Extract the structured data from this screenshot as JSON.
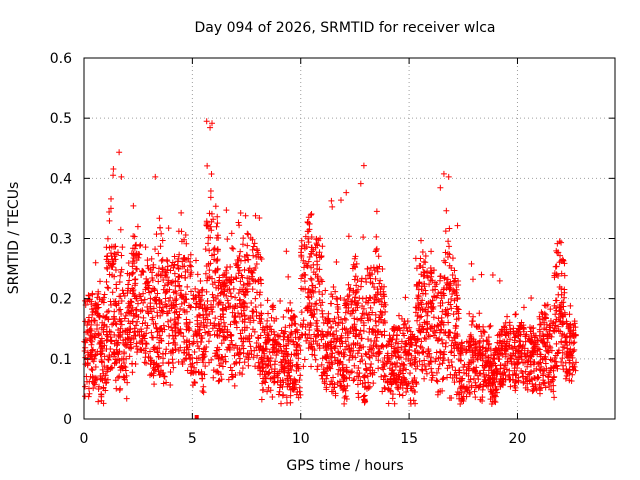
{
  "chart_data": {
    "type": "scatter",
    "title": "Day 094 of 2026, SRMTID for receiver wlca",
    "xlabel": "GPS time / hours",
    "ylabel": "SRMTID / TECUs",
    "xlim": [
      0,
      24.5
    ],
    "ylim": [
      0,
      0.6
    ],
    "x_ticks": [
      0,
      5,
      10,
      15,
      20
    ],
    "y_ticks": [
      0,
      0.1,
      0.2,
      0.3,
      0.4,
      0.5,
      0.6
    ],
    "x_tick_labels": [
      "0",
      "5",
      "10",
      "15",
      "20"
    ],
    "y_tick_labels": [
      "0",
      "0.1",
      "0.2",
      "0.3",
      "0.4",
      "0.5",
      "0.6"
    ],
    "grid": true,
    "marker": "+",
    "series": [
      {
        "name": "SRMTID",
        "color": "#ff0000",
        "segments": [
          {
            "t0": 0.0,
            "t1": 1.0,
            "base": 0.11,
            "spread": 0.09,
            "peak": 0.33,
            "n": 170
          },
          {
            "t0": 1.0,
            "t1": 1.5,
            "base": 0.16,
            "spread": 0.12,
            "peak": 0.52,
            "n": 110
          },
          {
            "t0": 1.5,
            "t1": 2.0,
            "base": 0.1,
            "spread": 0.07,
            "peak": 0.48,
            "n": 80
          },
          {
            "t0": 2.0,
            "t1": 3.0,
            "base": 0.17,
            "spread": 0.1,
            "peak": 0.41,
            "n": 170
          },
          {
            "t0": 3.0,
            "t1": 4.0,
            "base": 0.15,
            "spread": 0.1,
            "peak": 0.42,
            "n": 170
          },
          {
            "t0": 4.0,
            "t1": 5.0,
            "base": 0.17,
            "spread": 0.1,
            "peak": 0.43,
            "n": 170
          },
          {
            "t0": 5.0,
            "t1": 5.6,
            "base": 0.12,
            "spread": 0.08,
            "peak": 0.3,
            "n": 100
          },
          {
            "t0": 5.6,
            "t1": 6.2,
            "base": 0.19,
            "spread": 0.13,
            "peak": 0.5,
            "n": 110
          },
          {
            "t0": 6.2,
            "t1": 7.0,
            "base": 0.14,
            "spread": 0.09,
            "peak": 0.37,
            "n": 140
          },
          {
            "t0": 7.0,
            "t1": 8.2,
            "base": 0.17,
            "spread": 0.1,
            "peak": 0.35,
            "n": 200
          },
          {
            "t0": 8.2,
            "t1": 9.0,
            "base": 0.09,
            "spread": 0.06,
            "peak": 0.3,
            "n": 120
          },
          {
            "t0": 9.0,
            "t1": 10.0,
            "base": 0.08,
            "spread": 0.06,
            "peak": 0.33,
            "n": 160
          },
          {
            "t0": 10.0,
            "t1": 11.0,
            "base": 0.18,
            "spread": 0.11,
            "peak": 0.42,
            "n": 170
          },
          {
            "t0": 11.0,
            "t1": 12.0,
            "base": 0.09,
            "spread": 0.06,
            "peak": 0.37,
            "n": 160
          },
          {
            "t0": 12.0,
            "t1": 13.0,
            "base": 0.11,
            "spread": 0.09,
            "peak": 0.45,
            "n": 170
          },
          {
            "t0": 13.0,
            "t1": 14.0,
            "base": 0.14,
            "spread": 0.1,
            "peak": 0.37,
            "n": 160
          },
          {
            "t0": 14.0,
            "t1": 15.3,
            "base": 0.08,
            "spread": 0.06,
            "peak": 0.23,
            "n": 200
          },
          {
            "t0": 15.3,
            "t1": 16.3,
            "base": 0.15,
            "spread": 0.1,
            "peak": 0.31,
            "n": 170
          },
          {
            "t0": 16.3,
            "t1": 17.3,
            "base": 0.13,
            "spread": 0.1,
            "peak": 0.41,
            "n": 170
          },
          {
            "t0": 17.3,
            "t1": 19.0,
            "base": 0.07,
            "spread": 0.05,
            "peak": 0.28,
            "n": 260
          },
          {
            "t0": 19.0,
            "t1": 21.0,
            "base": 0.09,
            "spread": 0.05,
            "peak": 0.23,
            "n": 300
          },
          {
            "t0": 21.0,
            "t1": 21.7,
            "base": 0.1,
            "spread": 0.07,
            "peak": 0.26,
            "n": 110
          },
          {
            "t0": 21.7,
            "t1": 22.2,
            "base": 0.17,
            "spread": 0.1,
            "peak": 0.31,
            "n": 90
          },
          {
            "t0": 22.2,
            "t1": 22.7,
            "base": 0.11,
            "spread": 0.05,
            "peak": 0.2,
            "n": 80
          }
        ],
        "outlier": {
          "x": 5.2,
          "y": 0.0
        }
      }
    ]
  }
}
